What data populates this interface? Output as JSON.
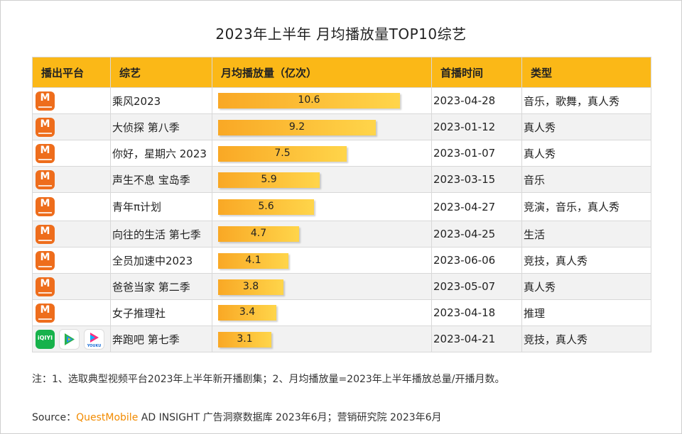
{
  "chart_data": {
    "type": "table",
    "title": "2023年上半年 月均播放量TOP10综艺",
    "headers": [
      "播出平台",
      "综艺",
      "月均播放量（亿次）",
      "首播时间",
      "类型"
    ],
    "max_value": 12,
    "rows": [
      {
        "platform": [
          "mango-tv"
        ],
        "show": "乘风2023",
        "value": 10.6,
        "value_label": "10.6",
        "date": "2023-04-28",
        "genre": "音乐，歌舞，真人秀"
      },
      {
        "platform": [
          "mango-tv"
        ],
        "show": "大侦探 第八季",
        "value": 9.2,
        "value_label": "9.2",
        "date": "2023-01-12",
        "genre": "真人秀"
      },
      {
        "platform": [
          "mango-tv"
        ],
        "show": "你好，星期六 2023",
        "value": 7.5,
        "value_label": "7.5",
        "date": "2023-01-07",
        "genre": "真人秀"
      },
      {
        "platform": [
          "mango-tv"
        ],
        "show": "声生不息 宝岛季",
        "value": 5.9,
        "value_label": "5.9",
        "date": "2023-03-15",
        "genre": "音乐"
      },
      {
        "platform": [
          "mango-tv"
        ],
        "show": "青年π计划",
        "value": 5.6,
        "value_label": "5.6",
        "date": "2023-04-27",
        "genre": "竞演，音乐，真人秀"
      },
      {
        "platform": [
          "mango-tv"
        ],
        "show": "向往的生活 第七季",
        "value": 4.7,
        "value_label": "4.7",
        "date": "2023-04-25",
        "genre": "生活"
      },
      {
        "platform": [
          "mango-tv"
        ],
        "show": "全员加速中2023",
        "value": 4.1,
        "value_label": "4.1",
        "date": "2023-06-06",
        "genre": "竞技，真人秀"
      },
      {
        "platform": [
          "mango-tv"
        ],
        "show": "爸爸当家 第二季",
        "value": 3.8,
        "value_label": "3.8",
        "date": "2023-05-07",
        "genre": "真人秀"
      },
      {
        "platform": [
          "mango-tv"
        ],
        "show": "女子推理社",
        "value": 3.4,
        "value_label": "3.4",
        "date": "2023-04-18",
        "genre": "推理"
      },
      {
        "platform": [
          "iqiyi",
          "tencent-video",
          "youku"
        ],
        "show": "奔跑吧 第七季",
        "value": 3.1,
        "value_label": "3.1",
        "date": "2023-04-21",
        "genre": "竞技，真人秀"
      }
    ]
  },
  "logos": {
    "mango_mark": "M",
    "iqiyi_text": "iQIYI",
    "youku_text": "YOUKU"
  },
  "colors": {
    "header": "#fbb817",
    "bar_start": "#f9a825",
    "bar_end": "#ffd54a",
    "mango": "#ee6d1c",
    "iqiyi": "#17b24b",
    "questmobile": "#f28b00"
  },
  "note": "注：1、选取典型视频平台2023年上半年新开播剧集；2、月均播放量=2023年上半年播放总量/开播月数。",
  "source": {
    "prefix": "Source：",
    "brand": "QuestMobile",
    "rest": " AD INSIGHT 广告洞察数据库 2023年6月；营销研究院 2023年6月"
  }
}
